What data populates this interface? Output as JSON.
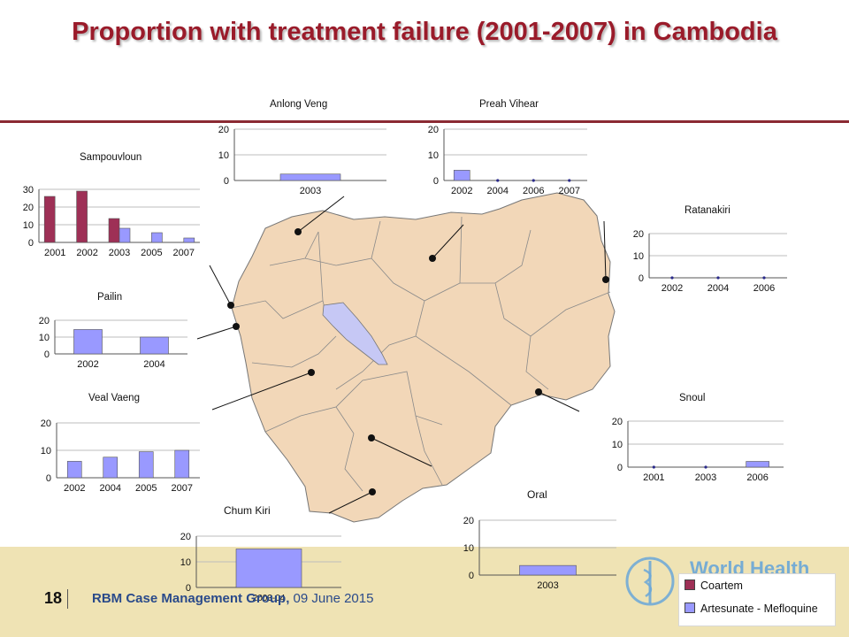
{
  "title": "Proportion with treatment failure (2001-2007) in Cambodia",
  "colors": {
    "coartem": "#9e3056",
    "artesunate": "#9999ff",
    "map_fill": "#f2d7b8",
    "lake": "#c6c8f5",
    "title": "#9a1b2a"
  },
  "legend": [
    {
      "label": "Coartem",
      "color": "#9e3056"
    },
    {
      "label": "Artesunate - Mefloquine",
      "color": "#9999ff"
    }
  ],
  "map_labels": {
    "oral": "Oral",
    "chum_kiri": "Chum Kiri"
  },
  "footer": {
    "slide_number": "18",
    "group": "RBM Case Management Group,",
    "date": "09 June 2015",
    "org_logo": "World Health"
  },
  "chart_data": [
    {
      "type": "bar",
      "title": "Sampouvloun",
      "categories": [
        "2001",
        "2002",
        "2003",
        "2005",
        "2007"
      ],
      "ylim": [
        0,
        30
      ],
      "yticks": [
        0,
        10,
        20,
        30
      ],
      "series": [
        {
          "name": "Coartem",
          "values": [
            26,
            29,
            13.5,
            0,
            0
          ]
        },
        {
          "name": "Artesunate - Mefloquine",
          "values": [
            0,
            0,
            8,
            5.5,
            2.5
          ]
        }
      ]
    },
    {
      "type": "bar",
      "title": "Anlong Veng",
      "categories": [
        "2003"
      ],
      "ylim": [
        0,
        20
      ],
      "yticks": [
        0,
        10,
        20
      ],
      "series": [
        {
          "name": "Artesunate - Mefloquine",
          "values": [
            2.5
          ]
        }
      ]
    },
    {
      "type": "bar",
      "title": "Preah Vihear",
      "categories": [
        "2002",
        "2004",
        "2006",
        "2007"
      ],
      "ylim": [
        0,
        20
      ],
      "yticks": [
        0,
        10,
        20
      ],
      "series": [
        {
          "name": "Artesunate - Mefloquine",
          "values": [
            4,
            0,
            0,
            0
          ]
        }
      ]
    },
    {
      "type": "bar",
      "title": "Ratanakiri",
      "categories": [
        "2002",
        "2004",
        "2006"
      ],
      "ylim": [
        0,
        20
      ],
      "yticks": [
        0,
        10,
        20
      ],
      "series": [
        {
          "name": "Artesunate - Mefloquine",
          "values": [
            0,
            0,
            0
          ]
        }
      ]
    },
    {
      "type": "bar",
      "title": "Pailin",
      "categories": [
        "2002",
        "2004"
      ],
      "ylim": [
        0,
        20
      ],
      "yticks": [
        0,
        10,
        20
      ],
      "series": [
        {
          "name": "Artesunate - Mefloquine",
          "values": [
            14.5,
            10
          ]
        }
      ]
    },
    {
      "type": "bar",
      "title": "Veal Vaeng",
      "categories": [
        "2002",
        "2004",
        "2005",
        "2007"
      ],
      "ylim": [
        0,
        20
      ],
      "yticks": [
        0,
        10,
        20
      ],
      "series": [
        {
          "name": "Artesunate - Mefloquine",
          "values": [
            6,
            7.5,
            9.5,
            10
          ]
        }
      ]
    },
    {
      "type": "bar",
      "title": "Snoul",
      "categories": [
        "2001",
        "2003",
        "2006"
      ],
      "ylim": [
        0,
        20
      ],
      "yticks": [
        0,
        10,
        20
      ],
      "series": [
        {
          "name": "Artesunate - Mefloquine",
          "values": [
            0,
            0,
            2.5
          ]
        }
      ]
    },
    {
      "type": "bar",
      "title": "",
      "categories": [
        "2003"
      ],
      "ylim": [
        0,
        20
      ],
      "yticks": [
        0,
        10,
        20
      ],
      "series": [
        {
          "name": "Artesunate - Mefloquine",
          "values": [
            3.5
          ]
        }
      ]
    },
    {
      "type": "bar",
      "title": "",
      "categories": [
        "2003-04"
      ],
      "ylim": [
        0,
        20
      ],
      "yticks": [
        0,
        10,
        20
      ],
      "series": [
        {
          "name": "Artesunate - Mefloquine",
          "values": [
            15
          ]
        }
      ]
    }
  ]
}
